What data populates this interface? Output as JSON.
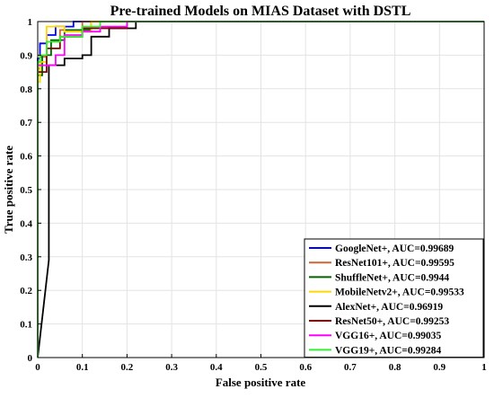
{
  "chart_data": {
    "type": "line",
    "title": "Pre-trained Models on MIAS Dataset with DSTL",
    "xlabel": "False positive rate",
    "ylabel": "True positive rate",
    "xlim": [
      0,
      1
    ],
    "ylim": [
      0,
      1
    ],
    "xticks": [
      "0",
      "0.1",
      "0.2",
      "0.3",
      "0.4",
      "0.5",
      "0.6",
      "0.7",
      "0.8",
      "0.9",
      "1"
    ],
    "yticks": [
      "0",
      "0.1",
      "0.2",
      "0.3",
      "0.4",
      "0.5",
      "0.6",
      "0.7",
      "0.8",
      "0.9",
      "1"
    ],
    "grid": true,
    "legend_position": "bottom-right",
    "series": [
      {
        "name": "GoogleNet+, AUC=0.99689",
        "color": "#0000ff",
        "x": [
          0,
          0,
          0,
          0.005,
          0.005,
          0.02,
          0.02,
          0.04,
          0.04,
          0.08,
          0.08,
          1
        ],
        "y": [
          0,
          0.89,
          0.89,
          0.89,
          0.935,
          0.935,
          0.96,
          0.96,
          0.985,
          0.985,
          1,
          1
        ]
      },
      {
        "name": "ResNet101+, AUC=0.99595",
        "color": "#cc6633",
        "x": [
          0,
          0,
          0.005,
          0.005,
          0.02,
          0.02,
          0.05,
          0.05,
          0.1,
          0.1,
          1
        ],
        "y": [
          0,
          0.86,
          0.86,
          0.895,
          0.895,
          0.94,
          0.94,
          0.975,
          0.975,
          1,
          1
        ]
      },
      {
        "name": "ShuffleNet+, AUC=0.9944",
        "color": "#006400",
        "x": [
          0,
          0,
          0.01,
          0.01,
          0.03,
          0.03,
          0.06,
          0.06,
          0.12,
          0.12,
          1
        ],
        "y": [
          0,
          0.84,
          0.84,
          0.9,
          0.9,
          0.945,
          0.945,
          0.975,
          0.975,
          1,
          1
        ]
      },
      {
        "name": "MobileNetv2+, AUC=0.99533",
        "color": "#ffd700",
        "x": [
          0,
          0,
          0.005,
          0.005,
          0.02,
          0.02,
          0.06,
          0.06,
          0.12,
          0.12,
          1
        ],
        "y": [
          0,
          0.82,
          0.82,
          0.88,
          0.88,
          0.985,
          0.985,
          0.97,
          0.97,
          1,
          1
        ]
      },
      {
        "name": "AlexNet+, AUC=0.96919",
        "color": "#000000",
        "x": [
          0,
          0.025,
          0.025,
          0.06,
          0.06,
          0.1,
          0.1,
          0.12,
          0.12,
          0.16,
          0.16,
          0.22,
          0.22,
          1
        ],
        "y": [
          0,
          0.29,
          0.87,
          0.87,
          0.89,
          0.89,
          0.9,
          0.9,
          0.955,
          0.955,
          0.98,
          0.98,
          1,
          1
        ]
      },
      {
        "name": "ResNet50+, AUC=0.99253",
        "color": "#800000",
        "x": [
          0,
          0,
          0.02,
          0.02,
          0.05,
          0.05,
          0.1,
          0.1,
          0.2,
          0.2,
          1
        ],
        "y": [
          0,
          0.85,
          0.85,
          0.92,
          0.92,
          0.955,
          0.955,
          0.98,
          0.98,
          1,
          1
        ]
      },
      {
        "name": "VGG16+, AUC=0.99035",
        "color": "#ff00ff",
        "x": [
          0,
          0,
          0.04,
          0.04,
          0.06,
          0.06,
          0.1,
          0.1,
          0.14,
          0.14,
          0.2,
          0.2,
          1
        ],
        "y": [
          0,
          0.87,
          0.87,
          0.9,
          0.9,
          0.96,
          0.96,
          0.97,
          0.97,
          0.985,
          0.985,
          1,
          1
        ]
      },
      {
        "name": "VGG19+, AUC=0.99284",
        "color": "#33ee33",
        "x": [
          0,
          0,
          0.005,
          0.005,
          0.02,
          0.02,
          0.05,
          0.05,
          0.1,
          0.1,
          0.14,
          0.14,
          1
        ],
        "y": [
          0,
          0.88,
          0.88,
          0.9,
          0.9,
          0.94,
          0.94,
          0.955,
          0.955,
          0.985,
          0.985,
          1,
          1
        ]
      }
    ]
  }
}
